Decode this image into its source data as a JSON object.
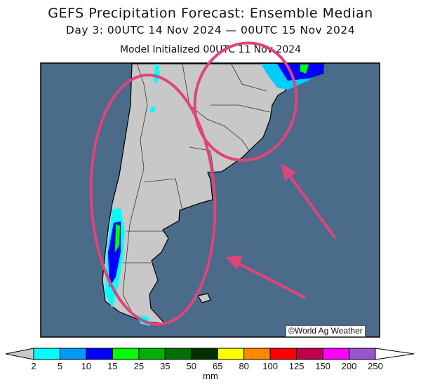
{
  "title": "GEFS Precipitation Forecast: Ensemble Median",
  "subtitle": "Day 3: 00UTC 14 Nov 2024 — 00UTC 15 Nov 2024",
  "init": "Model Initialized 00UTC 11 Nov 2024",
  "watermark": "©World Ag Weather",
  "colors": {
    "ocean": "#4a6b8a",
    "land": "#c8c8c8",
    "annotation": "#e0447a"
  },
  "colorbar": {
    "unit": "mm",
    "labels": [
      "2",
      "5",
      "10",
      "15",
      "25",
      "35",
      "50",
      "65",
      "80",
      "100",
      "125",
      "150",
      "200",
      "250"
    ],
    "colors": [
      "#00ffff",
      "#0099ff",
      "#0000ff",
      "#00ff00",
      "#00b000",
      "#007000",
      "#003000",
      "#ffff00",
      "#ff8800",
      "#ff0000",
      "#c0004a",
      "#ff00ff",
      "#9955cc"
    ],
    "under_color": "#c8c8c8",
    "over_color": "#ffffff"
  }
}
